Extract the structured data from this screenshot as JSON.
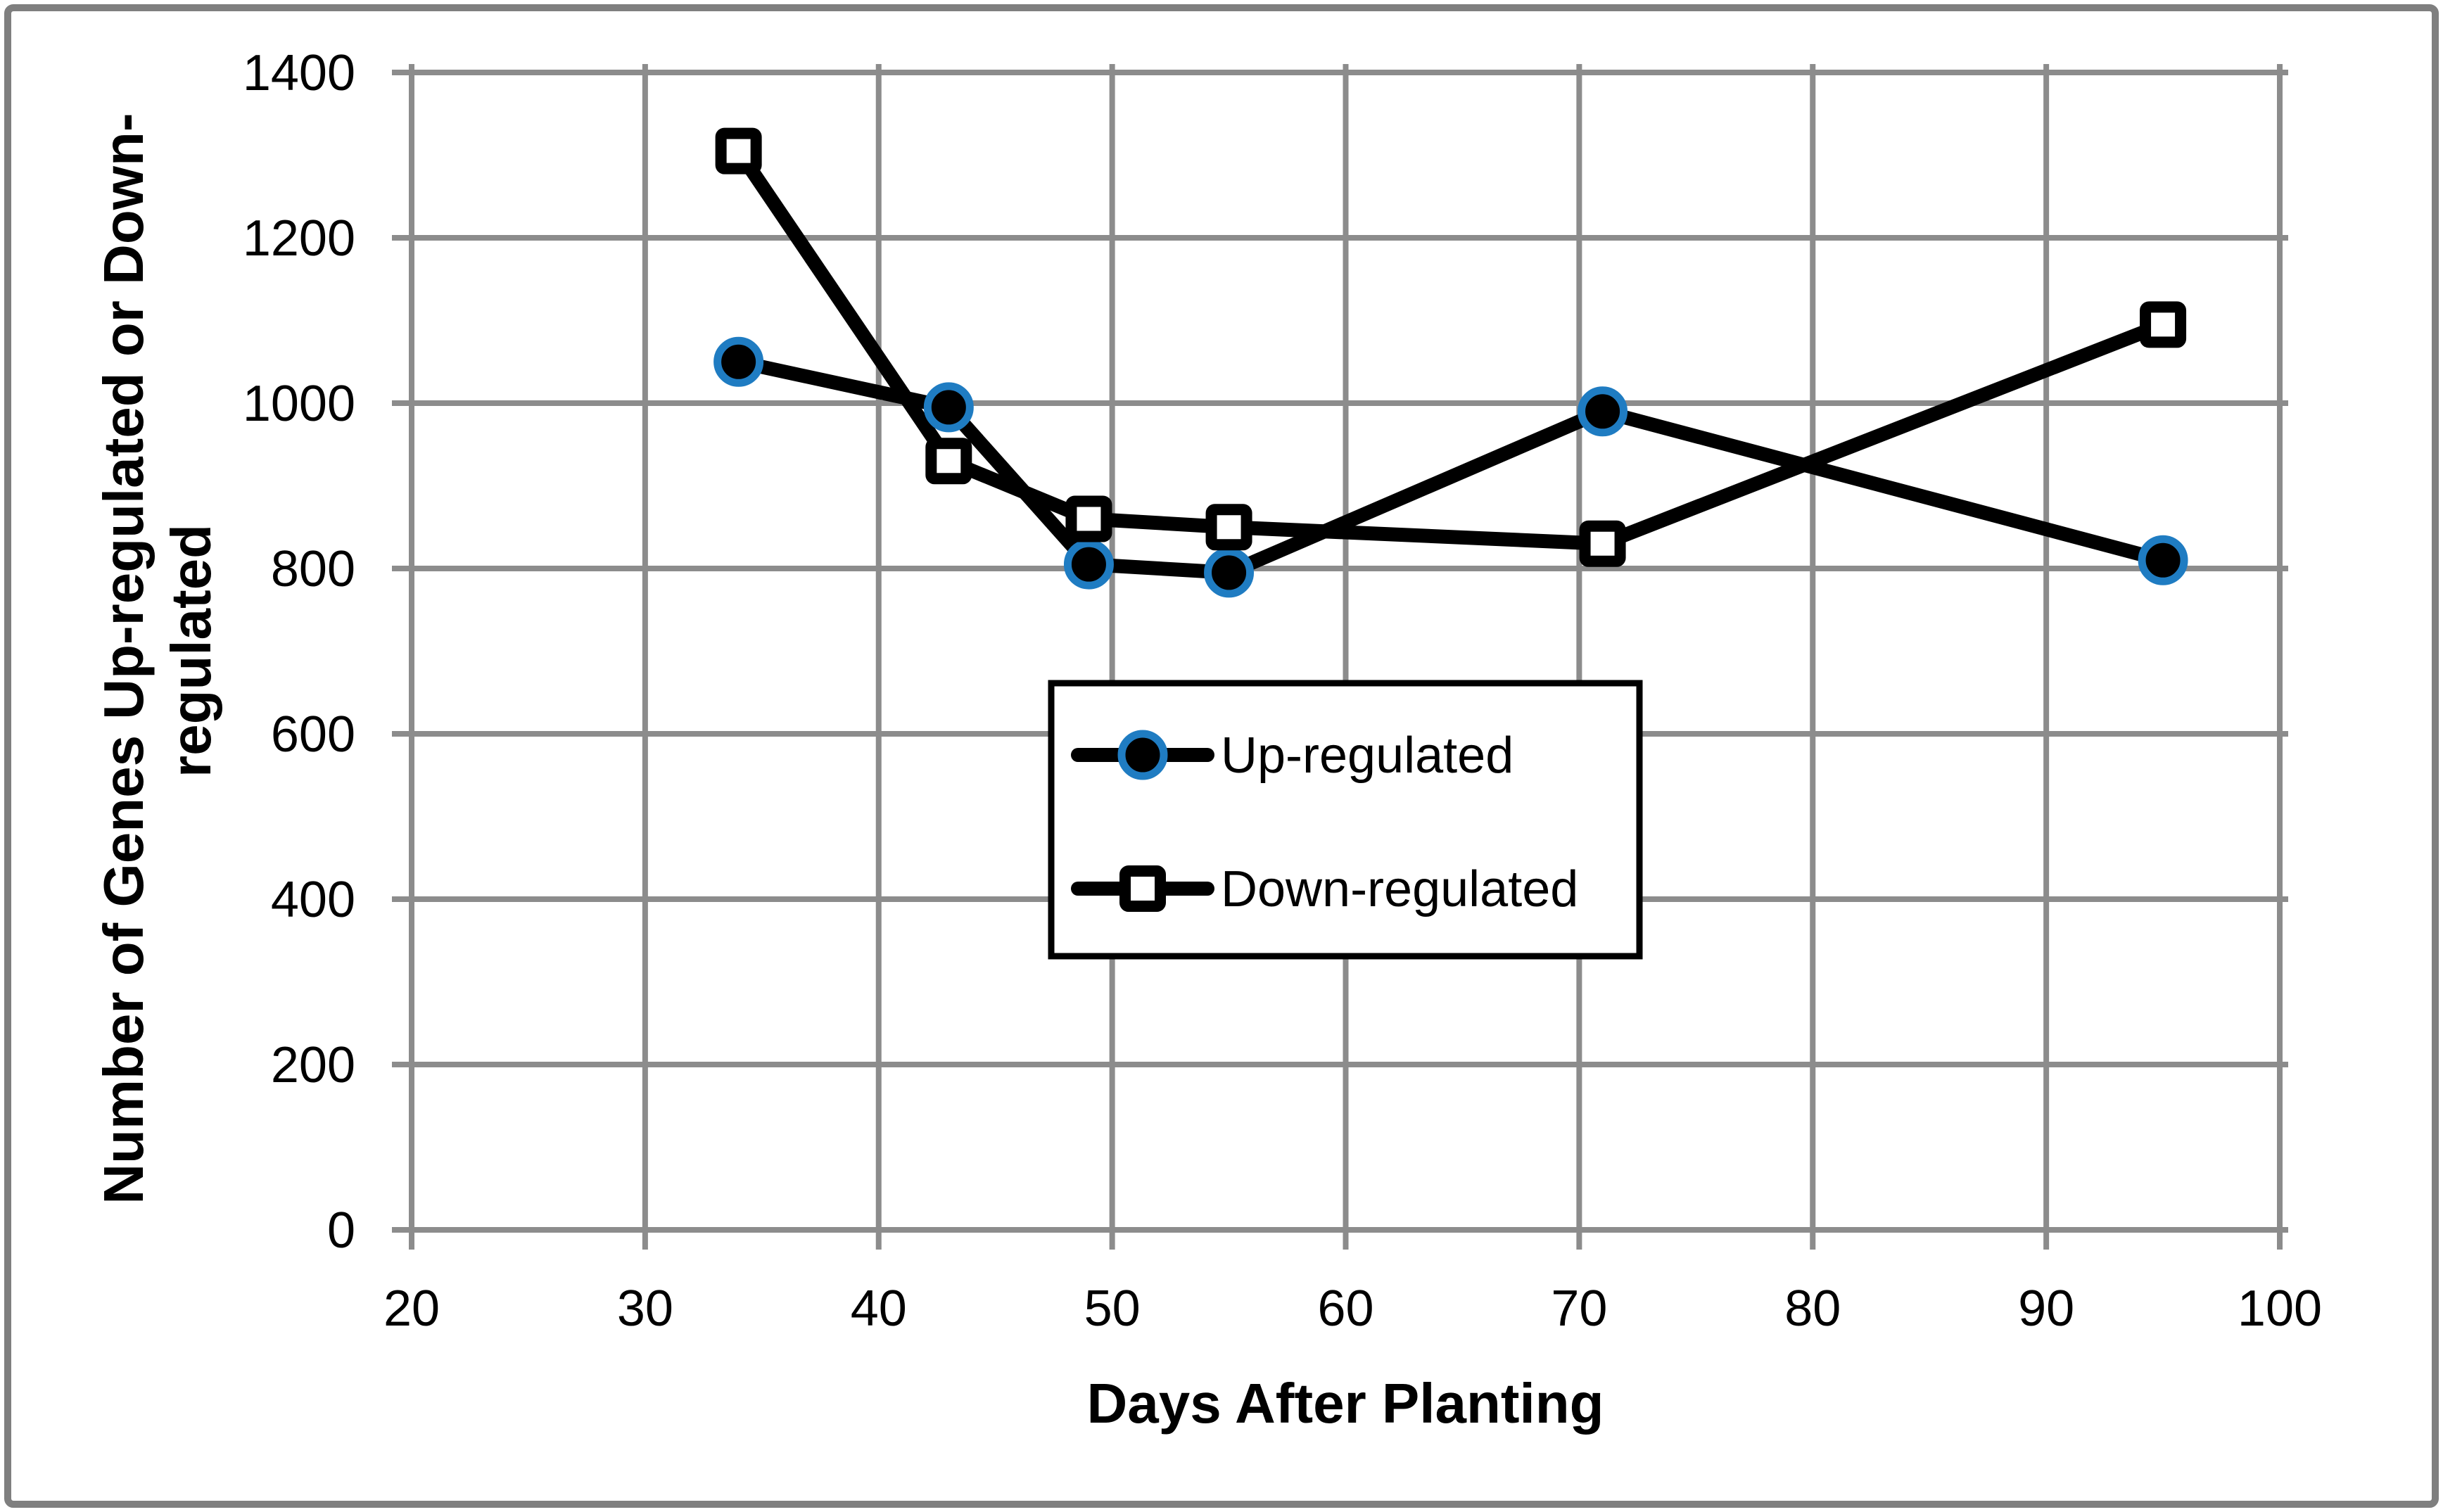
{
  "figure": {
    "background": "#ffffff",
    "border_color": "#7f7f7f"
  },
  "chart_data": {
    "type": "line",
    "title": "",
    "xlabel": "Days After Planting",
    "ylabel": "Number of Genes Up-regulated or Down-regulated",
    "ylabel_lines": [
      "Number of Genes Up-regulated or Down-",
      "regulated"
    ],
    "x": [
      34,
      43,
      49,
      55,
      71,
      95
    ],
    "series": [
      {
        "name": "Up-regulated",
        "values": [
          1050,
          995,
          805,
          795,
          990,
          810
        ],
        "marker": "circle",
        "marker_fill": "#000000",
        "marker_ring_color": "#1f7cc2",
        "line_color": "#000000"
      },
      {
        "name": "Down-regulated",
        "values": [
          1305,
          930,
          860,
          850,
          830,
          1095
        ],
        "marker": "square",
        "marker_fill": "#ffffff",
        "marker_border_color": "#000000",
        "line_color": "#000000"
      }
    ],
    "xlim": [
      20,
      100
    ],
    "ylim": [
      0,
      1400
    ],
    "xticks": [
      20,
      30,
      40,
      50,
      60,
      70,
      80,
      90,
      100
    ],
    "yticks": [
      0,
      200,
      400,
      600,
      800,
      1000,
      1200,
      1400
    ],
    "grid": true,
    "gridline_color": "#8c8c8c",
    "legend_position": "center",
    "legend_border_color": "#000000"
  },
  "legend": {
    "items": [
      {
        "label": "Up-regulated"
      },
      {
        "label": "Down-regulated"
      }
    ]
  }
}
